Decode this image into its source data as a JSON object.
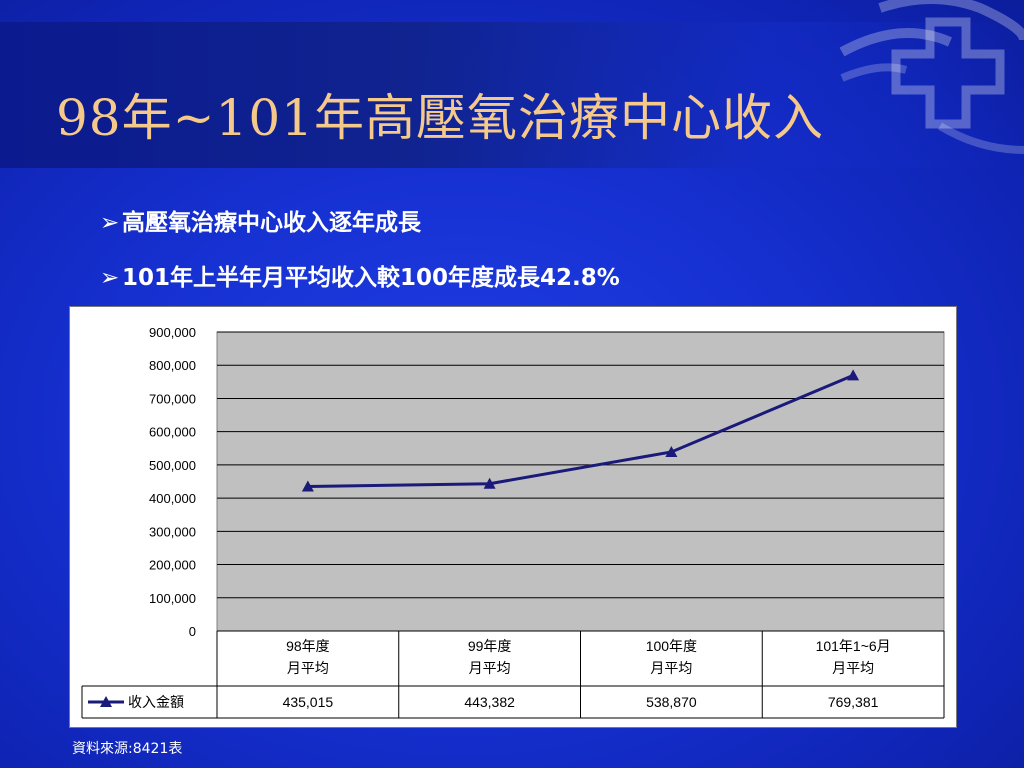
{
  "slide": {
    "title": "98年~101年高壓氧治療中心收入",
    "bullet_marker": "➢",
    "bullets": [
      "高壓氧治療中心收入逐年成長",
      "101年上半年月平均收入較100年度成長42.8%"
    ],
    "source": "資料來源:8421表"
  },
  "colors": {
    "background": "#1630d0",
    "title": "#f5c98a",
    "plot_area": "#c0c0c0",
    "series_line": "#1a1a7a"
  },
  "chart_data": {
    "type": "line",
    "categories": [
      [
        "98年度",
        "月平均"
      ],
      [
        "99年度",
        "月平均"
      ],
      [
        "100年度",
        "月平均"
      ],
      [
        "101年1~6月",
        "月平均"
      ]
    ],
    "series": [
      {
        "name": "收入金額",
        "values": [
          435015,
          443382,
          538870,
          769381
        ],
        "labels": [
          "435,015",
          "443,382",
          "538,870",
          "769,381"
        ],
        "marker": "triangle"
      }
    ],
    "ylim": [
      0,
      900000
    ],
    "yticks": [
      "0",
      "100,000",
      "200,000",
      "300,000",
      "400,000",
      "500,000",
      "600,000",
      "700,000",
      "800,000",
      "900,000"
    ],
    "grid": true,
    "data_table": true,
    "legend": "data-table-left"
  }
}
